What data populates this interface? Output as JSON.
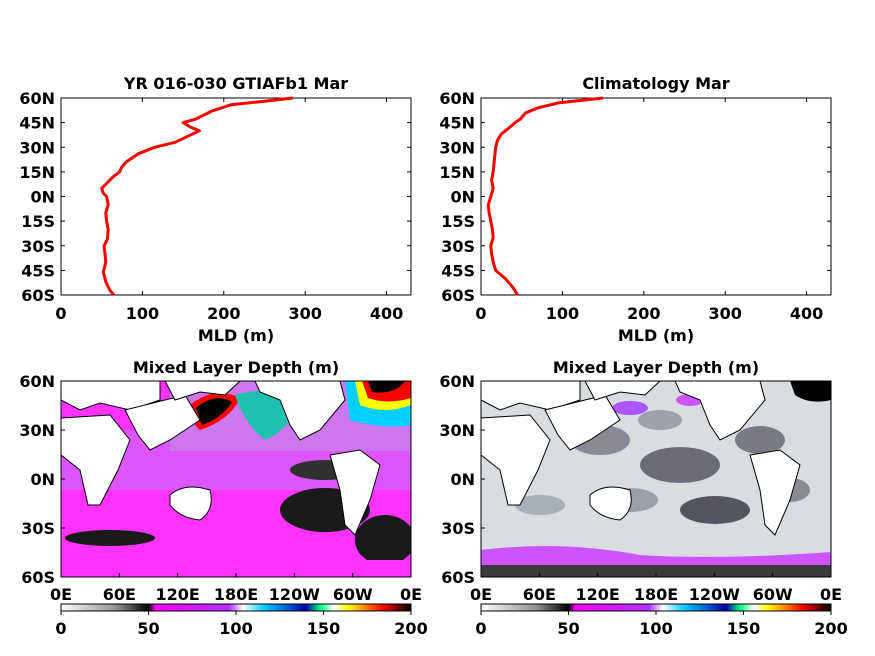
{
  "chart_data": [
    {
      "type": "line",
      "title": "YR 016-030 GTIAFb1 Mar",
      "xlabel": "MLD (m)",
      "ylabel": "",
      "xlim": [
        0,
        430
      ],
      "ylim": [
        -60,
        60
      ],
      "xticks": [
        "0",
        "100",
        "200",
        "300",
        "400"
      ],
      "yticks": [
        "60N",
        "45N",
        "30N",
        "15N",
        "0N",
        "15S",
        "30S",
        "45S",
        "60S"
      ],
      "series": [
        {
          "color": "#ff0000",
          "x": [
            65,
            60,
            55,
            52,
            55,
            54,
            53,
            57,
            58,
            56,
            55,
            58,
            56,
            52,
            50,
            56,
            64,
            72,
            75,
            80,
            95,
            115,
            140,
            170,
            160,
            150,
            165,
            185,
            210,
            250,
            285
          ],
          "y": [
            -60,
            -57,
            -52,
            -46,
            -40,
            -35,
            -30,
            -26,
            -20,
            -15,
            -10,
            -5,
            0,
            2,
            5,
            8,
            12,
            15,
            18,
            21,
            26,
            30,
            33,
            40,
            42,
            45,
            47,
            52,
            56,
            58,
            60
          ]
        }
      ]
    },
    {
      "type": "line",
      "title": "Climatology Mar",
      "xlabel": "MLD (m)",
      "ylabel": "",
      "xlim": [
        0,
        430
      ],
      "ylim": [
        -60,
        60
      ],
      "xticks": [
        "0",
        "100",
        "200",
        "300",
        "400"
      ],
      "yticks": [
        "60N",
        "45N",
        "30N",
        "15N",
        "0N",
        "15S",
        "30S",
        "45S",
        "60S"
      ],
      "series": [
        {
          "color": "#ff0000",
          "x": [
            45,
            40,
            30,
            18,
            15,
            13,
            12,
            15,
            14,
            12,
            10,
            9,
            12,
            15,
            13,
            15,
            16,
            17,
            18,
            20,
            25,
            35,
            42,
            48,
            55,
            70,
            95,
            150
          ],
          "y": [
            -60,
            -56,
            -50,
            -45,
            -40,
            -35,
            -30,
            -25,
            -20,
            -15,
            -10,
            -5,
            0,
            5,
            10,
            15,
            20,
            25,
            30,
            34,
            38,
            42,
            45,
            47,
            51,
            54,
            57,
            60
          ]
        }
      ]
    },
    {
      "type": "heatmap",
      "title": "Mixed Layer Depth (m)",
      "xlabel": "",
      "ylabel": "",
      "xticks": [
        "0E",
        "60E",
        "120E",
        "180E",
        "120W",
        "60W",
        "0E"
      ],
      "yticks": [
        "60N",
        "30N",
        "0N",
        "30S",
        "60S"
      ],
      "colorbar": {
        "ticks": [
          "0",
          "50",
          "100",
          "150",
          "200"
        ],
        "range": [
          0,
          200
        ],
        "colors": [
          "#ffffff",
          "#909090",
          "#000000",
          "#ff00ff",
          "#b030ff",
          "#ffffff",
          "#00cfff",
          "#0000aa",
          "#00ff80",
          "#ffff00",
          "#ff0000",
          "#000000"
        ]
      }
    },
    {
      "type": "heatmap",
      "title": "Mixed Layer Depth (m)",
      "xlabel": "",
      "ylabel": "",
      "xticks": [
        "0E",
        "60E",
        "120E",
        "180E",
        "120W",
        "60W",
        "0E"
      ],
      "yticks": [
        "60N",
        "30N",
        "0N",
        "30S",
        "60S"
      ],
      "colorbar": {
        "ticks": [
          "0",
          "50",
          "100",
          "150",
          "200"
        ],
        "range": [
          0,
          200
        ],
        "colors": [
          "#ffffff",
          "#909090",
          "#000000",
          "#ff00ff",
          "#b030ff",
          "#ffffff",
          "#00cfff",
          "#0000aa",
          "#00ff80",
          "#ffff00",
          "#ff0000",
          "#000000"
        ]
      }
    }
  ]
}
